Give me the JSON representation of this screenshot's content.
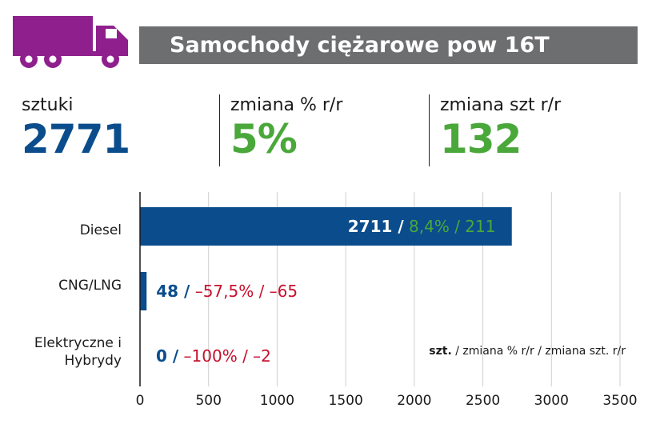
{
  "header": {
    "title": "Samochody ciężarowe pow 16T",
    "icon": "truck-icon",
    "icon_color": "#8e1f8c"
  },
  "stats": [
    {
      "label": "sztuki",
      "value": "2771",
      "color": "#0b4d8c"
    },
    {
      "label": "zmiana % r/r",
      "value": "5%",
      "color": "#4aa83a"
    },
    {
      "label": "zmiana szt r/r",
      "value": "132",
      "color": "#4aa83a"
    }
  ],
  "chart_data": {
    "type": "bar",
    "orientation": "horizontal",
    "categories": [
      "Diesel",
      "CNG/LNG",
      "Elektryczne i Hybrydy"
    ],
    "values": [
      2711,
      48,
      0
    ],
    "bar_labels": [
      {
        "units": "2711 /",
        "change": "8,4% / 211"
      },
      {
        "units": "48 /",
        "change": "–57,5% / –65"
      },
      {
        "units": "0 /",
        "change": "–100% / –2"
      }
    ],
    "xlim": [
      0,
      3500
    ],
    "xticks": [
      "0",
      "500",
      "1000",
      "1500",
      "2000",
      "2500",
      "3000",
      "3500"
    ],
    "grid": true,
    "note_bold": "szt.",
    "note_rest": " / zmiana % r/r / zmiana szt. r/r",
    "colors": {
      "bar": "#0b4d8c",
      "positive": "#4aa83a",
      "negative": "#c8102e",
      "inside_label": "#ffffff"
    }
  }
}
